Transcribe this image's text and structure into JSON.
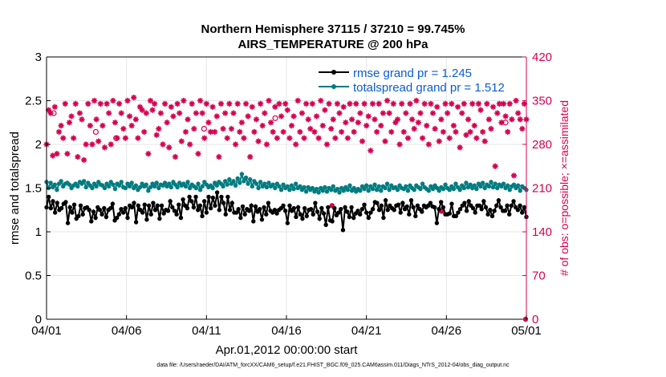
{
  "chart_data": {
    "type": "line",
    "title_line1": "Northern Hemisphere 37115 / 37210 = 99.745%",
    "title_line2": "AIRS_TEMPERATURE @ 200 hPa",
    "xlabel": "Apr.01,2012 00:00:00 start",
    "ylabel_left": "rmse and totalspread",
    "ylabel_right": "# of obs: o=possible; ×=assimilated",
    "x_tick_labels": [
      "04/01",
      "04/06",
      "04/11",
      "04/16",
      "04/21",
      "04/26",
      "05/01"
    ],
    "x_range_days": [
      0,
      30
    ],
    "ylim_left": [
      0,
      3
    ],
    "y_ticks_left": [
      "0",
      "0.5",
      "1",
      "1.5",
      "2",
      "2.5",
      "3"
    ],
    "ylim_right": [
      0,
      420
    ],
    "y_ticks_right": [
      "0",
      "70",
      "140",
      "210",
      "280",
      "350",
      "420"
    ],
    "legend_position": "top-right",
    "footer": "data file: /Users/raeder/DAI/ATM_forcXX/CAM6_setup/f.e21.FHIST_BGC.f09_025.CAM6assim.011/Diags_NTrS_2012-04/obs_diag_output.nc",
    "colors": {
      "rmse": "#000000",
      "spread": "#007c80",
      "obs": "#d6004f",
      "grid": "#e6e6e6"
    },
    "series": [
      {
        "name": "rmse grand pr = 1.245",
        "key": "rmse",
        "values": [
          1.28,
          1.4,
          1.27,
          1.35,
          1.22,
          1.33,
          1.25,
          1.27,
          1.32,
          1.34,
          1.1,
          1.28,
          1.22,
          1.31,
          1.15,
          1.18,
          1.3,
          1.2,
          1.27,
          1.28,
          1.25,
          1.12,
          1.23,
          1.16,
          1.28,
          1.25,
          1.2,
          1.27,
          1.17,
          1.25,
          1.27,
          1.32,
          1.13,
          1.16,
          1.2,
          1.26,
          1.22,
          1.27,
          1.16,
          1.3,
          1.28,
          1.33,
          1.11,
          1.3,
          1.25,
          1.22,
          1.31,
          1.14,
          1.3,
          1.2,
          1.33,
          1.25,
          1.3,
          1.15,
          1.3,
          1.21,
          1.25,
          1.24,
          1.35,
          1.28,
          1.24,
          1.2,
          1.31,
          1.16,
          1.37,
          1.3,
          1.27,
          1.4,
          1.35,
          1.28,
          1.4,
          1.25,
          1.3,
          1.18,
          1.35,
          1.22,
          1.4,
          1.27,
          1.39,
          1.3,
          1.45,
          1.25,
          1.4,
          1.33,
          1.2,
          1.4,
          1.25,
          1.33,
          1.22,
          1.22,
          1.26,
          1.16,
          1.29,
          1.2,
          1.26,
          1.24,
          1.3,
          1.12,
          1.29,
          1.23,
          1.26,
          1.14,
          1.28,
          1.2,
          1.33,
          1.24,
          1.22,
          1.25,
          1.21,
          1.25,
          1.27,
          1.3,
          1.24,
          1.1,
          1.3,
          1.24,
          1.27,
          1.17,
          1.28,
          1.2,
          1.15,
          1.27,
          1.18,
          1.25,
          1.26,
          1.2,
          1.33,
          1.23,
          1.15,
          1.27,
          1.21,
          1.08,
          1.28,
          1.13,
          1.12,
          1.27,
          1.19,
          1.22,
          1.26,
          1.02,
          1.28,
          1.23,
          1.17,
          1.28,
          1.16,
          1.21,
          1.24,
          1.2,
          1.26,
          1.31,
          1.22,
          1.16,
          1.22,
          1.26,
          1.34,
          1.33,
          1.25,
          1.3,
          1.16,
          1.36,
          1.25,
          1.3,
          1.27,
          1.25,
          1.3,
          1.31,
          1.22,
          1.33,
          1.26,
          1.29,
          1.2,
          1.36,
          1.28,
          1.18,
          1.3,
          1.26,
          1.23,
          1.3,
          1.28,
          1.3,
          1.33,
          1.29,
          1.28,
          1.1,
          1.26,
          1.34,
          1.28,
          1.2,
          1.2,
          1.21,
          1.32,
          1.18,
          1.18,
          1.22,
          1.26,
          1.3,
          1.33,
          1.24,
          1.35,
          1.3,
          1.27,
          1.22,
          1.3,
          1.3,
          1.26,
          1.35,
          1.28,
          1.2,
          1.25,
          1.18,
          1.24,
          1.3,
          1.36,
          1.28,
          1.24,
          1.24,
          1.3,
          1.2,
          1.3,
          1.35,
          1.28,
          1.25,
          1.3,
          1.22,
          1.28,
          1.17
        ]
      },
      {
        "name": "totalspread grand pr = 1.512",
        "key": "spread",
        "values": [
          1.57,
          1.5,
          1.56,
          1.51,
          1.54,
          1.48,
          1.55,
          1.58,
          1.52,
          1.55,
          1.56,
          1.54,
          1.5,
          1.53,
          1.55,
          1.52,
          1.57,
          1.55,
          1.58,
          1.51,
          1.56,
          1.53,
          1.5,
          1.55,
          1.52,
          1.57,
          1.54,
          1.53,
          1.5,
          1.55,
          1.52,
          1.57,
          1.54,
          1.49,
          1.55,
          1.53,
          1.57,
          1.51,
          1.5,
          1.55,
          1.52,
          1.56,
          1.5,
          1.53,
          1.48,
          1.51,
          1.55,
          1.52,
          1.54,
          1.47,
          1.51,
          1.55,
          1.52,
          1.56,
          1.5,
          1.54,
          1.53,
          1.56,
          1.52,
          1.55,
          1.51,
          1.57,
          1.54,
          1.51,
          1.56,
          1.53,
          1.55,
          1.52,
          1.57,
          1.5,
          1.54,
          1.52,
          1.5,
          1.55,
          1.48,
          1.52,
          1.57,
          1.54,
          1.51,
          1.53,
          1.5,
          1.56,
          1.53,
          1.57,
          1.55,
          1.52,
          1.58,
          1.54,
          1.6,
          1.55,
          1.58,
          1.53,
          1.61,
          1.56,
          1.66,
          1.58,
          1.62,
          1.55,
          1.6,
          1.52,
          1.58,
          1.55,
          1.5,
          1.57,
          1.52,
          1.55,
          1.51,
          1.56,
          1.52,
          1.54,
          1.5,
          1.55,
          1.52,
          1.48,
          1.54,
          1.5,
          1.52,
          1.48,
          1.53,
          1.49,
          1.55,
          1.5,
          1.52,
          1.48,
          1.51,
          1.46,
          1.51,
          1.48,
          1.5,
          1.46,
          1.49,
          1.45,
          1.5,
          1.47,
          1.51,
          1.46,
          1.5,
          1.48,
          1.52,
          1.47,
          1.49,
          1.45,
          1.5,
          1.47,
          1.51,
          1.48,
          1.53,
          1.47,
          1.5,
          1.46,
          1.49,
          1.47,
          1.52,
          1.49,
          1.53,
          1.47,
          1.52,
          1.49,
          1.54,
          1.48,
          1.52,
          1.47,
          1.52,
          1.5,
          1.55,
          1.48,
          1.53,
          1.5,
          1.51,
          1.48,
          1.53,
          1.5,
          1.49,
          1.52,
          1.47,
          1.53,
          1.5,
          1.48,
          1.53,
          1.51,
          1.49,
          1.55,
          1.51,
          1.49,
          1.47,
          1.52,
          1.49,
          1.53,
          1.5,
          1.47,
          1.51,
          1.49,
          1.54,
          1.5,
          1.48,
          1.52,
          1.49,
          1.55,
          1.51,
          1.48,
          1.53,
          1.5,
          1.56,
          1.51,
          1.54,
          1.5,
          1.53,
          1.49,
          1.55,
          1.52,
          1.56,
          1.5,
          1.54,
          1.52,
          1.57,
          1.51,
          1.55,
          1.5,
          1.54,
          1.52,
          1.55,
          1.5,
          1.53,
          1.48,
          1.52,
          1.54,
          1.5,
          1.53,
          1.47,
          1.52,
          1.5,
          1.48
        ]
      },
      {
        "name": "observation count (right axis)",
        "key": "obs",
        "values": [
          280,
          335,
          330,
          262,
          340,
          265,
          300,
          310,
          290,
          345,
          265,
          315,
          325,
          290,
          345,
          260,
          330,
          320,
          255,
          280,
          345,
          310,
          280,
          350,
          320,
          285,
          345,
          310,
          275,
          345,
          330,
          280,
          350,
          315,
          290,
          345,
          330,
          305,
          290,
          350,
          325,
          310,
          355,
          320,
          290,
          340,
          335,
          300,
          330,
          265,
          350,
          335,
          345,
          295,
          305,
          330,
          280,
          345,
          315,
          275,
          340,
          325,
          260,
          345,
          330,
          285,
          350,
          300,
          320,
          280,
          345,
          305,
          330,
          265,
          350,
          330,
          290,
          345,
          315,
          300,
          340,
          300,
          325,
          260,
          345,
          305,
          330,
          290,
          345,
          305,
          330,
          280,
          345,
          300,
          315,
          290,
          345,
          325,
          260,
          340,
          300,
          320,
          285,
          345,
          310,
          330,
          280,
          350,
          315,
          300,
          340,
          290,
          345,
          325,
          300,
          345,
          335,
          290,
          310,
          325,
          280,
          350,
          300,
          330,
          290,
          345,
          320,
          305,
          345,
          300,
          325,
          290,
          350,
          310,
          335,
          280,
          345,
          305,
          320,
          290,
          345,
          330,
          300,
          340,
          315,
          290,
          345,
          320,
          300,
          345,
          315,
          330,
          285,
          345,
          310,
          325,
          270,
          345,
          320,
          300,
          345,
          310,
          330,
          285,
          350,
          330,
          300,
          345,
          315,
          320,
          280,
          345,
          300,
          330,
          290,
          345,
          320,
          305,
          350,
          315,
          330,
          290,
          345,
          310,
          280,
          345,
          330,
          305,
          340,
          285,
          320,
          300,
          345,
          330,
          290,
          345,
          310,
          300,
          340,
          275,
          330,
          345,
          295,
          320,
          300,
          345,
          310,
          290,
          345,
          335,
          300,
          285,
          345,
          320,
          305,
          340,
          245,
          330,
          345,
          315,
          345,
          325,
          300,
          345,
          320,
          230,
          350,
          330,
          320,
          305,
          345,
          320
        ]
      }
    ],
    "possible_markers": [
      {
        "day": 0.45,
        "value": 330
      },
      {
        "day": 3.08,
        "value": 300
      },
      {
        "day": 4.35,
        "value": 290
      },
      {
        "day": 9.85,
        "value": 305
      },
      {
        "day": 14.3,
        "value": 322
      },
      {
        "day": 28.7,
        "value": 315
      }
    ],
    "isolated_obs_points": [
      {
        "day": 17.85,
        "value": 182
      },
      {
        "day": 24.7,
        "value": 173
      },
      {
        "day": 29.95,
        "value": 0
      }
    ]
  }
}
